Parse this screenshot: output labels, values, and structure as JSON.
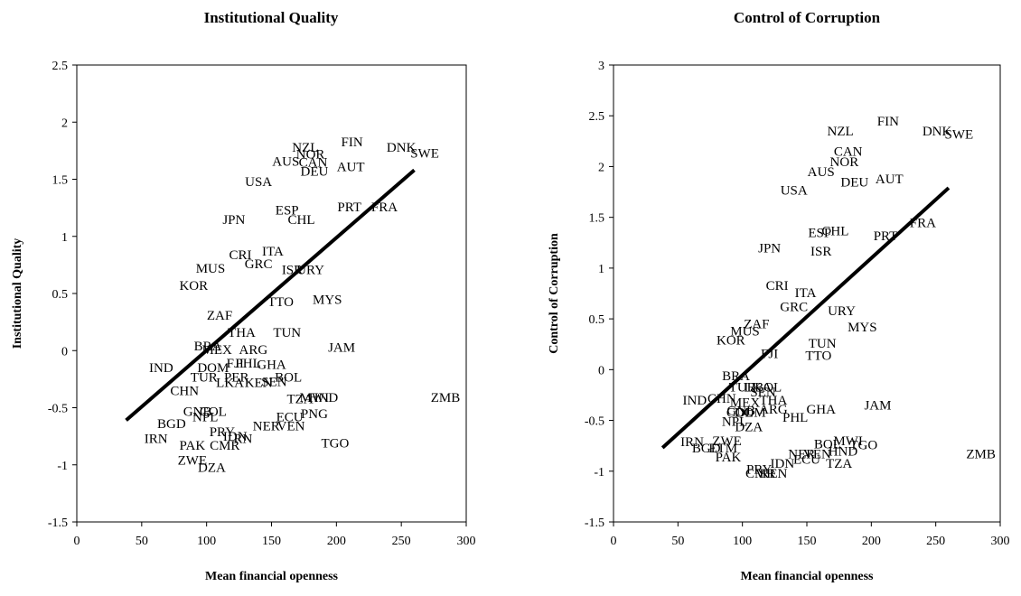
{
  "chart_data": [
    {
      "type": "scatter",
      "title": "Institutional Quality",
      "xlabel": "Mean financial openness",
      "ylabel": "Institutional Quality",
      "xlim": [
        0,
        300
      ],
      "ylim": [
        -1.5,
        2.5
      ],
      "xticks": [
        "0",
        "50",
        "100",
        "150",
        "200",
        "250",
        "300"
      ],
      "yticks": [
        "-1.5",
        "-1",
        "-0.5",
        "0",
        "0.5",
        "1",
        "1.5",
        "2",
        "2.5"
      ],
      "trendline": {
        "x": [
          38,
          260
        ],
        "y": [
          -0.61,
          1.58
        ]
      },
      "points": [
        {
          "label": "FIN",
          "x": 212,
          "y": 1.83
        },
        {
          "label": "NZL",
          "x": 176,
          "y": 1.78
        },
        {
          "label": "NOR",
          "x": 180,
          "y": 1.72
        },
        {
          "label": "CAN",
          "x": 182,
          "y": 1.65
        },
        {
          "label": "AUS",
          "x": 161,
          "y": 1.66
        },
        {
          "label": "DEU",
          "x": 183,
          "y": 1.57
        },
        {
          "label": "AUT",
          "x": 211,
          "y": 1.61
        },
        {
          "label": "DNK",
          "x": 250,
          "y": 1.78
        },
        {
          "label": "SWE",
          "x": 268,
          "y": 1.73
        },
        {
          "label": "USA",
          "x": 140,
          "y": 1.48
        },
        {
          "label": "ESP",
          "x": 162,
          "y": 1.23
        },
        {
          "label": "CHL",
          "x": 173,
          "y": 1.15
        },
        {
          "label": "PRT",
          "x": 210,
          "y": 1.26
        },
        {
          "label": "FRA",
          "x": 237,
          "y": 1.26
        },
        {
          "label": "JPN",
          "x": 121,
          "y": 1.15
        },
        {
          "label": "CRI",
          "x": 126,
          "y": 0.84
        },
        {
          "label": "ITA",
          "x": 151,
          "y": 0.87
        },
        {
          "label": "GRC",
          "x": 140,
          "y": 0.76
        },
        {
          "label": "MUS",
          "x": 103,
          "y": 0.72
        },
        {
          "label": "ISR",
          "x": 166,
          "y": 0.71
        },
        {
          "label": "URY",
          "x": 180,
          "y": 0.71
        },
        {
          "label": "KOR",
          "x": 90,
          "y": 0.57
        },
        {
          "label": "TTO",
          "x": 157,
          "y": 0.43
        },
        {
          "label": "MYS",
          "x": 193,
          "y": 0.45
        },
        {
          "label": "ZAF",
          "x": 110,
          "y": 0.31
        },
        {
          "label": "THA",
          "x": 127,
          "y": 0.16
        },
        {
          "label": "TUN",
          "x": 162,
          "y": 0.16
        },
        {
          "label": "JAM",
          "x": 204,
          "y": 0.03
        },
        {
          "label": "BRA",
          "x": 101,
          "y": 0.04
        },
        {
          "label": "MEX",
          "x": 108,
          "y": 0.01
        },
        {
          "label": "ARG",
          "x": 136,
          "y": 0.01
        },
        {
          "label": "IND",
          "x": 65,
          "y": -0.15
        },
        {
          "label": "DOM",
          "x": 105,
          "y": -0.15
        },
        {
          "label": "FJI",
          "x": 122,
          "y": -0.11
        },
        {
          "label": "PHL",
          "x": 132,
          "y": -0.11
        },
        {
          "label": "GHA",
          "x": 150,
          "y": -0.12
        },
        {
          "label": "TUR",
          "x": 98,
          "y": -0.23
        },
        {
          "label": "PER",
          "x": 123,
          "y": -0.23
        },
        {
          "label": "BOL",
          "x": 163,
          "y": -0.23
        },
        {
          "label": "LKA",
          "x": 118,
          "y": -0.28
        },
        {
          "label": "KEN",
          "x": 140,
          "y": -0.28
        },
        {
          "label": "SEN",
          "x": 152,
          "y": -0.27
        },
        {
          "label": "CHN",
          "x": 83,
          "y": -0.35
        },
        {
          "label": "TZA",
          "x": 172,
          "y": -0.42
        },
        {
          "label": "MWI",
          "x": 183,
          "y": -0.41
        },
        {
          "label": "HND",
          "x": 190,
          "y": -0.41
        },
        {
          "label": "ZMB",
          "x": 284,
          "y": -0.41
        },
        {
          "label": "GNB",
          "x": 93,
          "y": -0.53
        },
        {
          "label": "COL",
          "x": 105,
          "y": -0.53
        },
        {
          "label": "NPL",
          "x": 99,
          "y": -0.58
        },
        {
          "label": "BGD",
          "x": 73,
          "y": -0.64
        },
        {
          "label": "ECU",
          "x": 164,
          "y": -0.58
        },
        {
          "label": "PNG",
          "x": 183,
          "y": -0.55
        },
        {
          "label": "NER",
          "x": 146,
          "y": -0.66
        },
        {
          "label": "VEN",
          "x": 165,
          "y": -0.66
        },
        {
          "label": "PRY",
          "x": 112,
          "y": -0.71
        },
        {
          "label": "IDN",
          "x": 122,
          "y": -0.75
        },
        {
          "label": "RN",
          "x": 128,
          "y": -0.77
        },
        {
          "label": "IRN",
          "x": 61,
          "y": -0.77
        },
        {
          "label": "PAK",
          "x": 89,
          "y": -0.83
        },
        {
          "label": "CMR",
          "x": 114,
          "y": -0.83
        },
        {
          "label": "TGO",
          "x": 199,
          "y": -0.81
        },
        {
          "label": "ZWE",
          "x": 89,
          "y": -0.96
        },
        {
          "label": "DZA",
          "x": 104,
          "y": -1.02
        }
      ]
    },
    {
      "type": "scatter",
      "title": "Control of Corruption",
      "xlabel": "Mean financial openness",
      "ylabel": "Control of Corruption",
      "xlim": [
        0,
        300
      ],
      "ylim": [
        -1.5,
        3
      ],
      "xticks": [
        "0",
        "50",
        "100",
        "150",
        "200",
        "250",
        "300"
      ],
      "yticks": [
        "-1.5",
        "-1",
        "-0.5",
        "0",
        "0.5",
        "1",
        "1.5",
        "2",
        "2.5",
        "3"
      ],
      "trendline": {
        "x": [
          38,
          260
        ],
        "y": [
          -0.77,
          1.79
        ]
      },
      "points": [
        {
          "label": "FIN",
          "x": 213,
          "y": 2.45
        },
        {
          "label": "NZL",
          "x": 176,
          "y": 2.35
        },
        {
          "label": "CAN",
          "x": 182,
          "y": 2.15
        },
        {
          "label": "NOR",
          "x": 179,
          "y": 2.05
        },
        {
          "label": "AUS",
          "x": 161,
          "y": 1.95
        },
        {
          "label": "DEU",
          "x": 187,
          "y": 1.85
        },
        {
          "label": "AUT",
          "x": 214,
          "y": 1.88
        },
        {
          "label": "USA",
          "x": 140,
          "y": 1.77
        },
        {
          "label": "DNK",
          "x": 251,
          "y": 2.35
        },
        {
          "label": "SWE",
          "x": 268,
          "y": 2.32
        },
        {
          "label": "ESP",
          "x": 160,
          "y": 1.35
        },
        {
          "label": "CHL",
          "x": 172,
          "y": 1.37
        },
        {
          "label": "PRT",
          "x": 211,
          "y": 1.32
        },
        {
          "label": "FRA",
          "x": 240,
          "y": 1.45
        },
        {
          "label": "JPN",
          "x": 121,
          "y": 1.2
        },
        {
          "label": "ISR",
          "x": 161,
          "y": 1.17
        },
        {
          "label": "CRI",
          "x": 127,
          "y": 0.83
        },
        {
          "label": "ITA",
          "x": 149,
          "y": 0.76
        },
        {
          "label": "GRC",
          "x": 140,
          "y": 0.62
        },
        {
          "label": "URY",
          "x": 177,
          "y": 0.58
        },
        {
          "label": "ZAF",
          "x": 111,
          "y": 0.45
        },
        {
          "label": "MUS",
          "x": 102,
          "y": 0.38
        },
        {
          "label": "MYS",
          "x": 193,
          "y": 0.42
        },
        {
          "label": "KOR",
          "x": 91,
          "y": 0.29
        },
        {
          "label": "TUN",
          "x": 162,
          "y": 0.26
        },
        {
          "label": "FJI",
          "x": 121,
          "y": 0.16
        },
        {
          "label": "TTO",
          "x": 159,
          "y": 0.14
        },
        {
          "label": "BRA",
          "x": 95,
          "y": -0.06
        },
        {
          "label": "TUR",
          "x": 100,
          "y": -0.17
        },
        {
          "label": "LKA",
          "x": 112,
          "y": -0.17
        },
        {
          "label": "BOL",
          "x": 120,
          "y": -0.17
        },
        {
          "label": "SEN",
          "x": 116,
          "y": -0.22
        },
        {
          "label": "IND",
          "x": 63,
          "y": -0.3
        },
        {
          "label": "CHN",
          "x": 84,
          "y": -0.28
        },
        {
          "label": "MEX",
          "x": 102,
          "y": -0.32
        },
        {
          "label": "THA",
          "x": 124,
          "y": -0.3
        },
        {
          "label": "COL",
          "x": 98,
          "y": -0.42
        },
        {
          "label": "DOM",
          "x": 106,
          "y": -0.42
        },
        {
          "label": "ARG",
          "x": 124,
          "y": -0.39
        },
        {
          "label": "GHA",
          "x": 161,
          "y": -0.39
        },
        {
          "label": "GNB",
          "x": 99,
          "y": -0.4
        },
        {
          "label": "PHL",
          "x": 141,
          "y": -0.47
        },
        {
          "label": "JAM",
          "x": 205,
          "y": -0.35
        },
        {
          "label": "NPL",
          "x": 94,
          "y": -0.51
        },
        {
          "label": "DZA",
          "x": 105,
          "y": -0.56
        },
        {
          "label": "IRN",
          "x": 61,
          "y": -0.71
        },
        {
          "label": "BGD",
          "x": 72,
          "y": -0.77
        },
        {
          "label": "ETM",
          "x": 85,
          "y": -0.77
        },
        {
          "label": "ZWE",
          "x": 88,
          "y": -0.7
        },
        {
          "label": "PAK",
          "x": 89,
          "y": -0.86
        },
        {
          "label": "NER",
          "x": 146,
          "y": -0.83
        },
        {
          "label": "VEN",
          "x": 158,
          "y": -0.83
        },
        {
          "label": "HND",
          "x": 178,
          "y": -0.8
        },
        {
          "label": "ECU",
          "x": 150,
          "y": -0.88
        },
        {
          "label": "BOL",
          "x": 166,
          "y": -0.73
        },
        {
          "label": "MWI",
          "x": 182,
          "y": -0.7
        },
        {
          "label": "TGO",
          "x": 194,
          "y": -0.74
        },
        {
          "label": "TZA",
          "x": 175,
          "y": -0.92
        },
        {
          "label": "PRY",
          "x": 113,
          "y": -0.98
        },
        {
          "label": "IDN",
          "x": 131,
          "y": -0.92
        },
        {
          "label": "CMR",
          "x": 114,
          "y": -1.02
        },
        {
          "label": "KEN",
          "x": 124,
          "y": -1.02
        },
        {
          "label": "ZMB",
          "x": 285,
          "y": -0.83
        }
      ]
    }
  ]
}
